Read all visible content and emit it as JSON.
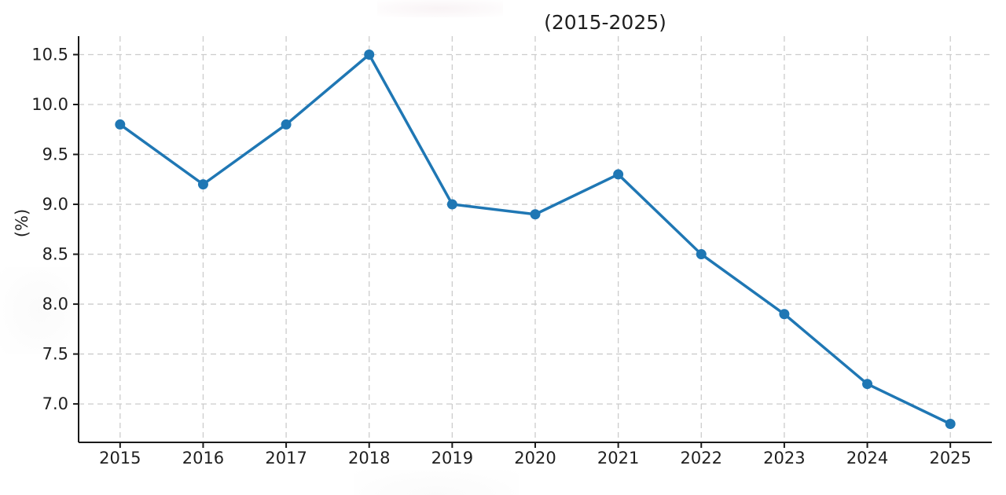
{
  "chart_data": {
    "type": "line",
    "title": "(2015-2025)",
    "ylabel": "(%)",
    "x": [
      2015,
      2016,
      2017,
      2018,
      2019,
      2020,
      2021,
      2022,
      2023,
      2024,
      2025
    ],
    "values": [
      9.8,
      9.2,
      9.8,
      10.5,
      9.0,
      8.9,
      9.3,
      8.5,
      7.9,
      7.2,
      6.8
    ],
    "xlim": [
      2014.5,
      2025.5
    ],
    "ylim": [
      6.615,
      10.685
    ],
    "yticks": [
      7.0,
      7.5,
      8.0,
      8.5,
      9.0,
      9.5,
      10.0,
      10.5
    ],
    "grid": true,
    "legend": "none",
    "line_color": "#1f77b4",
    "grid_color": "#cccccc",
    "spine_color": "#1a1a1a",
    "tick_label_color": "#1f1f1f",
    "marker": "o"
  }
}
